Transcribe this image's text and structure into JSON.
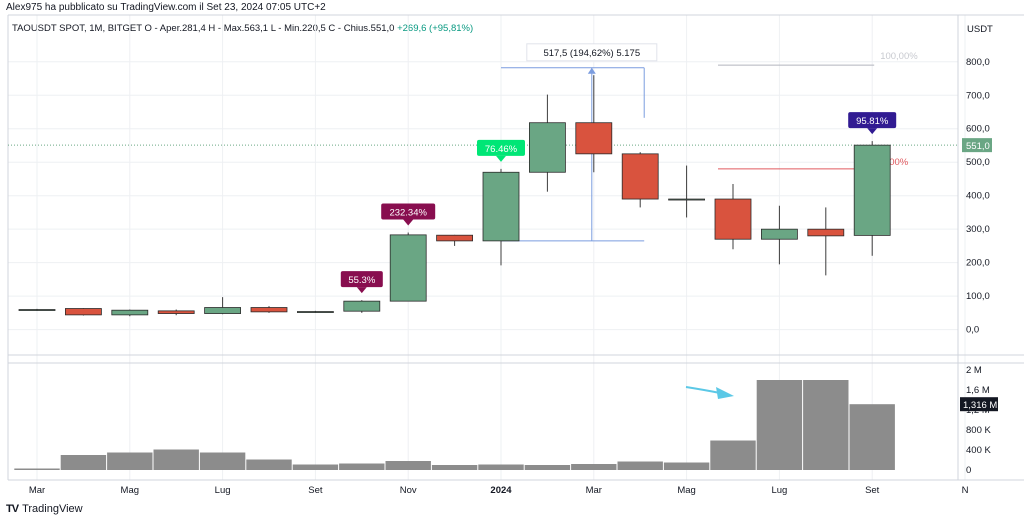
{
  "header": {
    "published": "Alex975 ha pubblicato su TradingView.com il Set 23, 2024 07:05 UTC+2"
  },
  "legend": {
    "symbol": "TAOUSDT SPOT, 1M, BITGET",
    "ohlc": "O - Aper.281,4  H - Max.563,1  L - Min.220,5  C - Chius.551,0",
    "change": "+269,6 (+95,81%)"
  },
  "axis": {
    "currency": "USDT",
    "price_ticks": [
      "800,0",
      "700,0",
      "600,0",
      "500,0",
      "400,0",
      "300,0",
      "200,0",
      "100,0",
      "0,0"
    ],
    "volume_ticks": [
      "2 M",
      "1,6 M",
      "1,2 M",
      "800 K",
      "400 K",
      "0"
    ],
    "time_ticks": [
      "Mar",
      "Mag",
      "Lug",
      "Set",
      "Nov",
      "2024",
      "Mar",
      "Mag",
      "Lug",
      "Set",
      "N"
    ],
    "last_price_label": "551,0",
    "last_volume_label": "1,316 M"
  },
  "annotations": {
    "measure_label": "517,5 (194,62%) 5.175",
    "fib_top_label": "100,00%",
    "fib_mid_label": "00%",
    "badges": [
      "55.3%",
      "232.34%",
      "76.46%",
      "95.81%"
    ]
  },
  "brand": {
    "name": "TradingView"
  },
  "colors": {
    "up": "#6aa684",
    "down": "#d9533e",
    "volume": "#8c8c8c",
    "badge_maroon": "#880e4f",
    "badge_green": "#00e676",
    "badge_indigo": "#311b92",
    "measure": "#7a9cdf",
    "fib_line": "#e05a5f",
    "arrow": "#5bc8e6"
  },
  "chart_data": {
    "type": "candlestick",
    "interval": "1M",
    "currency": "USDT",
    "candles": [
      {
        "period": "2023-03",
        "open": 58,
        "high": 62,
        "low": 56,
        "close": 60
      },
      {
        "period": "2023-04",
        "open": 63,
        "high": 64,
        "low": 42,
        "close": 44
      },
      {
        "period": "2023-05",
        "open": 44,
        "high": 60,
        "low": 40,
        "close": 58
      },
      {
        "period": "2023-06",
        "open": 56,
        "high": 60,
        "low": 43,
        "close": 48
      },
      {
        "period": "2023-07",
        "open": 48,
        "high": 97,
        "low": 46,
        "close": 66
      },
      {
        "period": "2023-08",
        "open": 66,
        "high": 70,
        "low": 50,
        "close": 53
      },
      {
        "period": "2023-09",
        "open": 53,
        "high": 56,
        "low": 50,
        "close": 54
      },
      {
        "period": "2023-10",
        "open": 55,
        "high": 88,
        "low": 50,
        "close": 85
      },
      {
        "period": "2023-11",
        "open": 85,
        "high": 290,
        "low": 84,
        "close": 283
      },
      {
        "period": "2023-12",
        "open": 282,
        "high": 283,
        "low": 250,
        "close": 265
      },
      {
        "period": "2024-01",
        "open": 265,
        "high": 480,
        "low": 192,
        "close": 470
      },
      {
        "period": "2024-02",
        "open": 470,
        "high": 702,
        "low": 412,
        "close": 618
      },
      {
        "period": "2024-03",
        "open": 618,
        "high": 760,
        "low": 470,
        "close": 525
      },
      {
        "period": "2024-04",
        "open": 525,
        "high": 530,
        "low": 365,
        "close": 390
      },
      {
        "period": "2024-05",
        "open": 390,
        "high": 490,
        "low": 335,
        "close": 390
      },
      {
        "period": "2024-06",
        "open": 390,
        "high": 435,
        "low": 240,
        "close": 270
      },
      {
        "period": "2024-07",
        "open": 270,
        "high": 370,
        "low": 195,
        "close": 300
      },
      {
        "period": "2024-08",
        "open": 300,
        "high": 365,
        "low": 162,
        "close": 280
      },
      {
        "period": "2024-09",
        "open": 281.4,
        "high": 563.1,
        "low": 220.5,
        "close": 551.0
      }
    ],
    "volume": [
      30000,
      300000,
      350000,
      410000,
      350000,
      210000,
      110000,
      130000,
      180000,
      100000,
      110000,
      100000,
      120000,
      170000,
      150000,
      590000,
      1800000,
      1800000,
      1316000
    ],
    "price_range": [
      -40,
      880
    ],
    "volume_range": [
      0,
      2000000
    ]
  }
}
